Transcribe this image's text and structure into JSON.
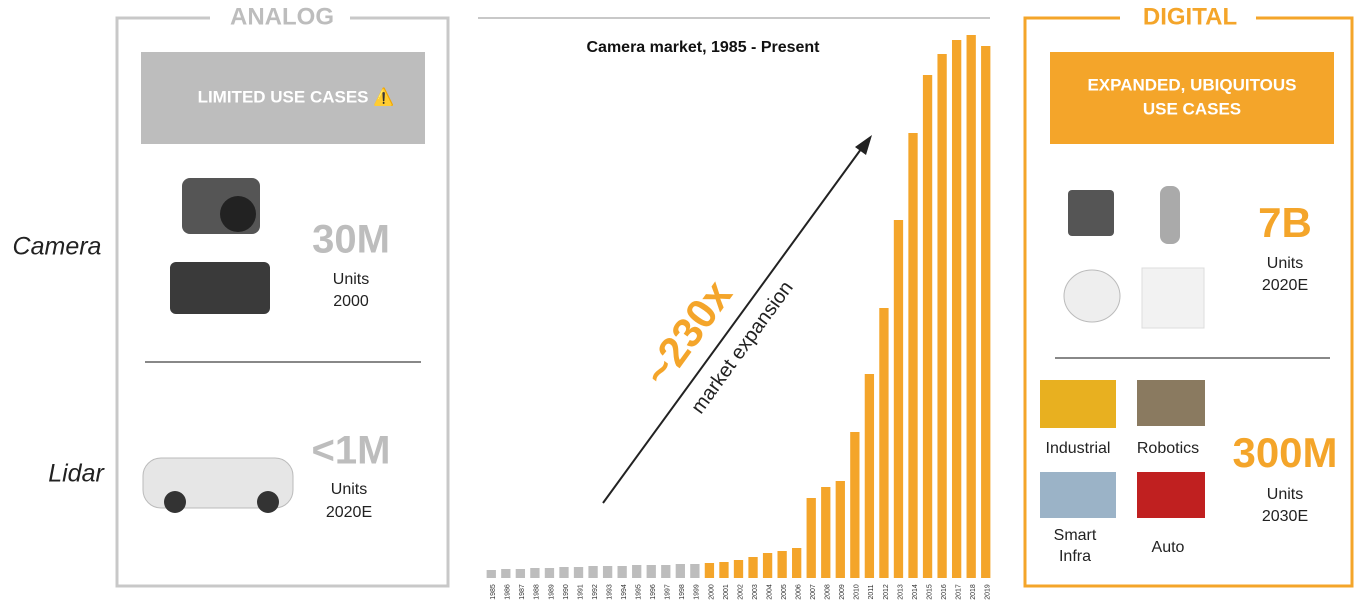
{
  "left": {
    "header": "ANALOG",
    "banner": "LIMITED USE CASES ⚠️",
    "camera": {
      "label": "Camera",
      "value": "30M",
      "unit": "Units",
      "year": "2000"
    },
    "lidar": {
      "label": "Lidar",
      "value": "<1M",
      "unit": "Units",
      "year": "2020E"
    }
  },
  "right": {
    "header": "DIGITAL",
    "banner": [
      "EXPANDED, UBIQUITOUS",
      "USE CASES"
    ],
    "camera": {
      "value": "7B",
      "unit": "Units",
      "year": "2020E"
    },
    "lidar": {
      "value": "300M",
      "unit": "Units",
      "year": "2030E",
      "uses": [
        "Industrial",
        "Robotics",
        [
          "Smart",
          "Infra"
        ],
        "Auto"
      ]
    }
  },
  "chart_data": {
    "type": "bar",
    "title": "Camera market, 1985 - Present",
    "annotation": "~230x",
    "annotation_sub": "market expansion",
    "categories": [
      "1985",
      "1986",
      "1987",
      "1988",
      "1989",
      "1990",
      "1991",
      "1992",
      "1993",
      "1994",
      "1995",
      "1996",
      "1997",
      "1998",
      "1999",
      "2000",
      "2001",
      "2002",
      "2003",
      "2004",
      "2005",
      "2006",
      "2007",
      "2008",
      "2009",
      "2010",
      "2011",
      "2012",
      "2013",
      "2014",
      "2015",
      "2016",
      "2017",
      "2018",
      "2019"
    ],
    "values": [
      8,
      9,
      9,
      10,
      10,
      11,
      11,
      12,
      12,
      12,
      13,
      13,
      13,
      14,
      14,
      15,
      16,
      18,
      21,
      25,
      27,
      30,
      80,
      91,
      97,
      146,
      204,
      270,
      358,
      445,
      503,
      524,
      538,
      543,
      532
    ],
    "colors": [
      "#bdbdbd",
      "#bdbdbd",
      "#bdbdbd",
      "#bdbdbd",
      "#bdbdbd",
      "#bdbdbd",
      "#bdbdbd",
      "#bdbdbd",
      "#bdbdbd",
      "#bdbdbd",
      "#bdbdbd",
      "#bdbdbd",
      "#bdbdbd",
      "#bdbdbd",
      "#bdbdbd",
      "#f4a52a",
      "#f4a52a",
      "#f4a52a",
      "#f4a52a",
      "#f4a52a",
      "#f4a52a",
      "#f4a52a",
      "#f4a52a",
      "#f4a52a",
      "#f4a52a",
      "#f4a52a",
      "#f4a52a",
      "#f4a52a",
      "#f4a52a",
      "#f4a52a",
      "#f4a52a",
      "#f4a52a",
      "#f4a52a",
      "#f4a52a",
      "#f4a52a"
    ]
  }
}
